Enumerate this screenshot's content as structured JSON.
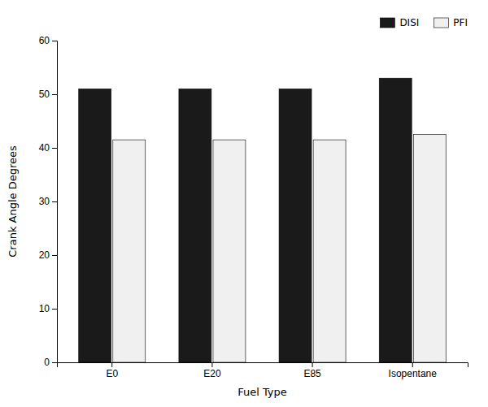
{
  "chart_data": {
    "type": "bar",
    "categories": [
      "E0",
      "E20",
      "E85",
      "Isopentane"
    ],
    "series": [
      {
        "name": "DISI",
        "color": "#1a1a1a",
        "values": [
          51.0,
          51.0,
          51.0,
          53.0
        ]
      },
      {
        "name": "PFI",
        "color": "#f0f0f0",
        "values": [
          41.5,
          41.5,
          41.5,
          42.5
        ]
      }
    ],
    "xlabel": "Fuel Type",
    "ylabel": "Crank Angle Degrees",
    "ylim": [
      0,
      60
    ],
    "yticks": [
      0,
      10,
      20,
      30,
      40,
      50,
      60
    ],
    "legend": "upper right",
    "grid": false
  }
}
